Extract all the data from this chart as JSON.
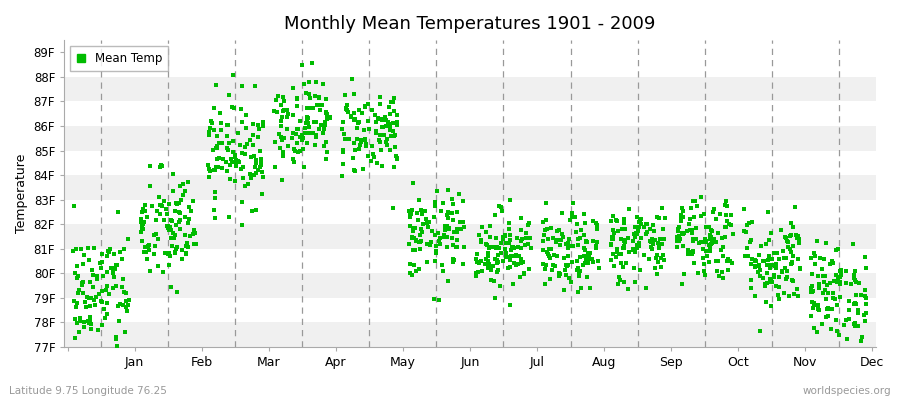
{
  "title": "Monthly Mean Temperatures 1901 - 2009",
  "ylabel": "Temperature",
  "xlabel_bottom_left": "Latitude 9.75 Longitude 76.25",
  "xlabel_bottom_right": "worldspecies.org",
  "legend_label": "Mean Temp",
  "marker_color": "#00BB00",
  "background_color": "#FFFFFF",
  "plot_bg_light": "#F0F0F0",
  "plot_bg_dark": "#E0E0E0",
  "ylim": [
    77,
    89.5
  ],
  "ytick_labels": [
    "77F",
    "78F",
    "79F",
    "80F",
    "81F",
    "82F",
    "83F",
    "84F",
    "85F",
    "86F",
    "87F",
    "88F",
    "89F"
  ],
  "ytick_values": [
    77,
    78,
    79,
    80,
    81,
    82,
    83,
    84,
    85,
    86,
    87,
    88,
    89
  ],
  "months": [
    "Jan",
    "Feb",
    "Mar",
    "Apr",
    "May",
    "Jun",
    "Jul",
    "Aug",
    "Sep",
    "Oct",
    "Nov",
    "Dec"
  ],
  "month_means": [
    79.2,
    81.8,
    85.0,
    86.2,
    85.8,
    81.5,
    81.0,
    80.8,
    81.2,
    81.5,
    80.5,
    79.2
  ],
  "month_stds": [
    1.3,
    1.2,
    1.1,
    0.9,
    0.9,
    0.9,
    0.8,
    0.8,
    0.8,
    0.9,
    1.0,
    1.0
  ],
  "n_years": 109,
  "seed": 42
}
